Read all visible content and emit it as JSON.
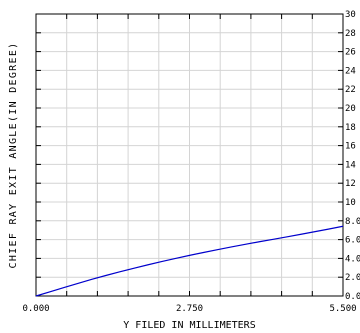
{
  "chart_data": {
    "type": "line",
    "xlabel": "Y FILED IN MILLIMETERS",
    "ylabel": "CHIEF RAY EXIT ANGLE(IN DEGREE)",
    "xlim": [
      0,
      5.5
    ],
    "ylim": [
      0,
      30
    ],
    "x_tick_labels": [
      "0.000",
      "2.750",
      "5.500"
    ],
    "y_tick_labels": [
      "0.0",
      "2.0",
      "4.0",
      "6.0",
      "8.0",
      "10",
      "12",
      "14",
      "16",
      "18",
      "20",
      "22",
      "24",
      "26",
      "28",
      "30"
    ],
    "grid": true,
    "line_color": "#0000cc",
    "series": [
      {
        "x": [
          0,
          0.25,
          0.5,
          0.75,
          1.0,
          1.25,
          1.5,
          1.75,
          2.0,
          2.25,
          2.5,
          2.75,
          3.0,
          3.25,
          3.5,
          3.75,
          4.0,
          4.25,
          4.5,
          4.75,
          5.0,
          5.25,
          5.5
        ],
        "values": [
          0,
          0.45,
          0.9,
          1.34,
          1.77,
          2.18,
          2.57,
          2.95,
          3.31,
          3.66,
          4.0,
          4.32,
          4.63,
          4.93,
          5.22,
          5.5,
          5.77,
          6.03,
          6.3,
          6.57,
          6.85,
          7.13,
          7.42
        ]
      }
    ]
  }
}
